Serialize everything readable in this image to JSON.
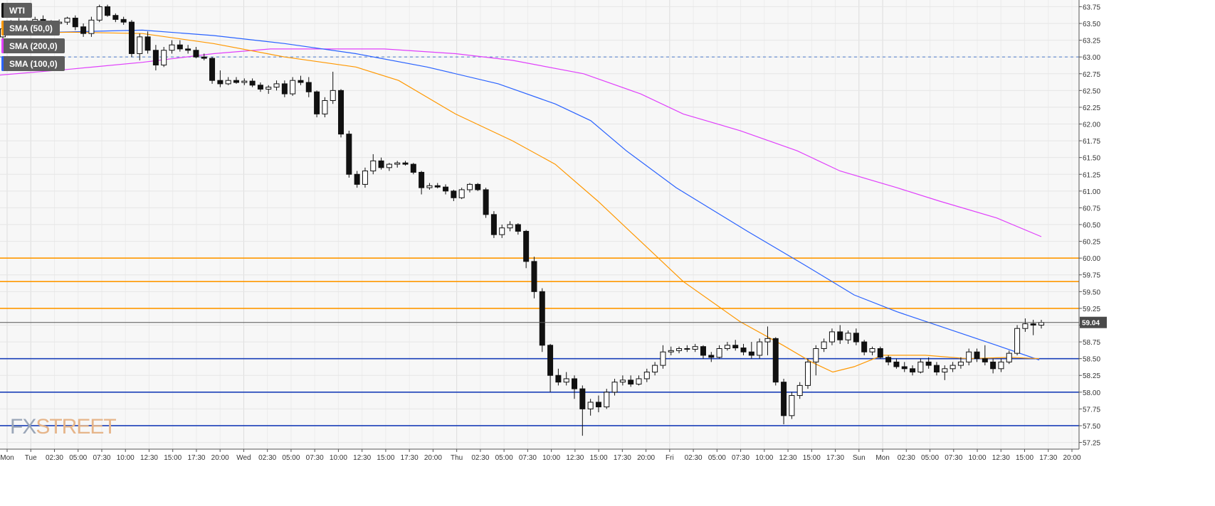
{
  "legend": [
    {
      "label": "WTI",
      "color": "#111111"
    },
    {
      "label": "SMA (50,0)",
      "color": "#ff9800"
    },
    {
      "label": "SMA (200,0)",
      "color": "#e040fb"
    },
    {
      "label": "SMA (100,0)",
      "color": "#2962ff"
    }
  ],
  "watermark": {
    "fx": "FX",
    "rest": "STREET"
  },
  "chart_data": {
    "type": "candlestick",
    "symbol": "WTI",
    "ylim": [
      57.15,
      63.85
    ],
    "y_ticks": [
      "57.25",
      "57.50",
      "57.75",
      "58.00",
      "58.25",
      "58.50",
      "58.75",
      "59.00",
      "59.25",
      "59.50",
      "59.75",
      "60.00",
      "60.25",
      "60.50",
      "60.75",
      "61.00",
      "61.25",
      "61.50",
      "61.75",
      "62.00",
      "62.25",
      "62.50",
      "62.75",
      "63.00",
      "63.25",
      "63.50",
      "63.75"
    ],
    "x_labels": [
      "Mon",
      "Tue",
      "02:30",
      "05:00",
      "07:30",
      "10:00",
      "12:30",
      "15:00",
      "17:30",
      "20:00",
      "Wed",
      "02:30",
      "05:00",
      "07:30",
      "10:00",
      "12:30",
      "15:00",
      "17:30",
      "20:00",
      "Thu",
      "02:30",
      "05:00",
      "07:30",
      "10:00",
      "12:30",
      "15:00",
      "17:30",
      "20:00",
      "Fri",
      "02:30",
      "05:00",
      "07:30",
      "10:00",
      "12:30",
      "15:00",
      "17:30",
      "Sun",
      "Mon",
      "02:30",
      "05:00",
      "07:30",
      "10:00",
      "12:30",
      "15:00",
      "17:30",
      "20:00"
    ],
    "current_price": "59.04",
    "horizontal_levels": [
      {
        "value": 60.0,
        "color": "#ff9800"
      },
      {
        "value": 59.65,
        "color": "#ff9800"
      },
      {
        "value": 59.25,
        "color": "#ff9800"
      },
      {
        "value": 58.5,
        "color": "#1a3fb8"
      },
      {
        "value": 58.0,
        "color": "#1a3fb8"
      },
      {
        "value": 57.5,
        "color": "#1a3fb8"
      },
      {
        "value": 63.0,
        "color": "#4a78c8",
        "dashed": true
      }
    ],
    "candles": [
      {
        "o": 63.3,
        "h": 63.45,
        "l": 63.25,
        "c": 63.42
      },
      {
        "o": 63.42,
        "h": 63.55,
        "l": 63.4,
        "c": 63.5
      },
      {
        "o": 63.5,
        "h": 63.58,
        "l": 63.38,
        "c": 63.45
      },
      {
        "o": 63.45,
        "h": 63.55,
        "l": 63.42,
        "c": 63.52
      },
      {
        "o": 63.52,
        "h": 63.6,
        "l": 63.48,
        "c": 63.56
      },
      {
        "o": 63.56,
        "h": 63.62,
        "l": 63.45,
        "c": 63.48
      },
      {
        "o": 63.48,
        "h": 63.55,
        "l": 63.44,
        "c": 63.5
      },
      {
        "o": 63.5,
        "h": 63.56,
        "l": 63.46,
        "c": 63.52
      },
      {
        "o": 63.52,
        "h": 63.6,
        "l": 63.48,
        "c": 63.58
      },
      {
        "o": 63.58,
        "h": 63.62,
        "l": 63.4,
        "c": 63.45
      },
      {
        "o": 63.45,
        "h": 63.5,
        "l": 63.3,
        "c": 63.35
      },
      {
        "o": 63.35,
        "h": 63.6,
        "l": 63.3,
        "c": 63.55
      },
      {
        "o": 63.55,
        "h": 63.78,
        "l": 63.52,
        "c": 63.75
      },
      {
        "o": 63.75,
        "h": 63.78,
        "l": 63.6,
        "c": 63.62
      },
      {
        "o": 63.62,
        "h": 63.65,
        "l": 63.52,
        "c": 63.56
      },
      {
        "o": 63.56,
        "h": 63.6,
        "l": 63.48,
        "c": 63.52
      },
      {
        "o": 63.52,
        "h": 63.55,
        "l": 63.0,
        "c": 63.05
      },
      {
        "o": 63.05,
        "h": 63.35,
        "l": 62.95,
        "c": 63.3
      },
      {
        "o": 63.3,
        "h": 63.38,
        "l": 63.05,
        "c": 63.1
      },
      {
        "o": 63.1,
        "h": 63.18,
        "l": 62.8,
        "c": 62.88
      },
      {
        "o": 62.88,
        "h": 63.15,
        "l": 62.85,
        "c": 63.1
      },
      {
        "o": 63.1,
        "h": 63.25,
        "l": 63.05,
        "c": 63.18
      },
      {
        "o": 63.18,
        "h": 63.25,
        "l": 63.08,
        "c": 63.12
      },
      {
        "o": 63.12,
        "h": 63.18,
        "l": 63.05,
        "c": 63.1
      },
      {
        "o": 63.1,
        "h": 63.15,
        "l": 62.98,
        "c": 63.0
      },
      {
        "o": 63.0,
        "h": 63.05,
        "l": 62.95,
        "c": 62.98
      },
      {
        "o": 62.98,
        "h": 63.0,
        "l": 62.6,
        "c": 62.65
      },
      {
        "o": 62.65,
        "h": 62.8,
        "l": 62.55,
        "c": 62.6
      },
      {
        "o": 62.6,
        "h": 62.7,
        "l": 62.58,
        "c": 62.65
      },
      {
        "o": 62.65,
        "h": 62.7,
        "l": 62.6,
        "c": 62.62
      },
      {
        "o": 62.62,
        "h": 62.68,
        "l": 62.58,
        "c": 62.64
      },
      {
        "o": 62.64,
        "h": 62.68,
        "l": 62.55,
        "c": 62.58
      },
      {
        "o": 62.58,
        "h": 62.62,
        "l": 62.48,
        "c": 62.52
      },
      {
        "o": 62.52,
        "h": 62.58,
        "l": 62.45,
        "c": 62.55
      },
      {
        "o": 62.55,
        "h": 62.65,
        "l": 62.5,
        "c": 62.6
      },
      {
        "o": 62.6,
        "h": 62.65,
        "l": 62.4,
        "c": 62.45
      },
      {
        "o": 62.45,
        "h": 62.7,
        "l": 62.42,
        "c": 62.65
      },
      {
        "o": 62.65,
        "h": 62.72,
        "l": 62.58,
        "c": 62.62
      },
      {
        "o": 62.62,
        "h": 62.7,
        "l": 62.4,
        "c": 62.48
      },
      {
        "o": 62.48,
        "h": 62.5,
        "l": 62.1,
        "c": 62.15
      },
      {
        "o": 62.15,
        "h": 62.4,
        "l": 62.1,
        "c": 62.35
      },
      {
        "o": 62.35,
        "h": 62.78,
        "l": 62.3,
        "c": 62.5
      },
      {
        "o": 62.5,
        "h": 62.52,
        "l": 61.8,
        "c": 61.85
      },
      {
        "o": 61.85,
        "h": 61.9,
        "l": 61.2,
        "c": 61.25
      },
      {
        "o": 61.25,
        "h": 61.3,
        "l": 61.05,
        "c": 61.1
      },
      {
        "o": 61.1,
        "h": 61.35,
        "l": 61.05,
        "c": 61.3
      },
      {
        "o": 61.3,
        "h": 61.55,
        "l": 61.25,
        "c": 61.45
      },
      {
        "o": 61.45,
        "h": 61.5,
        "l": 61.32,
        "c": 61.35
      },
      {
        "o": 61.35,
        "h": 61.42,
        "l": 61.3,
        "c": 61.4
      },
      {
        "o": 61.4,
        "h": 61.45,
        "l": 61.35,
        "c": 61.42
      },
      {
        "o": 61.42,
        "h": 61.45,
        "l": 61.38,
        "c": 61.4
      },
      {
        "o": 61.4,
        "h": 61.42,
        "l": 61.25,
        "c": 61.28
      },
      {
        "o": 61.28,
        "h": 61.3,
        "l": 60.95,
        "c": 61.05
      },
      {
        "o": 61.05,
        "h": 61.12,
        "l": 61.02,
        "c": 61.08
      },
      {
        "o": 61.08,
        "h": 61.12,
        "l": 61.04,
        "c": 61.06
      },
      {
        "o": 61.06,
        "h": 61.1,
        "l": 60.95,
        "c": 61.0
      },
      {
        "o": 61.0,
        "h": 61.02,
        "l": 60.85,
        "c": 60.9
      },
      {
        "o": 60.9,
        "h": 61.05,
        "l": 60.88,
        "c": 61.02
      },
      {
        "o": 61.02,
        "h": 61.12,
        "l": 60.98,
        "c": 61.1
      },
      {
        "o": 61.1,
        "h": 61.12,
        "l": 61.0,
        "c": 61.02
      },
      {
        "o": 61.02,
        "h": 61.05,
        "l": 60.6,
        "c": 60.65
      },
      {
        "o": 60.65,
        "h": 60.7,
        "l": 60.3,
        "c": 60.35
      },
      {
        "o": 60.35,
        "h": 60.5,
        "l": 60.3,
        "c": 60.45
      },
      {
        "o": 60.45,
        "h": 60.55,
        "l": 60.4,
        "c": 60.5
      },
      {
        "o": 60.5,
        "h": 60.52,
        "l": 60.35,
        "c": 60.4
      },
      {
        "o": 60.4,
        "h": 60.42,
        "l": 59.85,
        "c": 59.95
      },
      {
        "o": 59.95,
        "h": 60.02,
        "l": 59.4,
        "c": 59.5
      },
      {
        "o": 59.5,
        "h": 59.55,
        "l": 58.6,
        "c": 58.7
      },
      {
        "o": 58.7,
        "h": 58.72,
        "l": 58.0,
        "c": 58.25
      },
      {
        "o": 58.25,
        "h": 58.35,
        "l": 58.1,
        "c": 58.15
      },
      {
        "o": 58.15,
        "h": 58.3,
        "l": 58.1,
        "c": 58.2
      },
      {
        "o": 58.2,
        "h": 58.25,
        "l": 57.9,
        "c": 58.05
      },
      {
        "o": 58.05,
        "h": 58.1,
        "l": 57.35,
        "c": 57.75
      },
      {
        "o": 57.75,
        "h": 57.9,
        "l": 57.65,
        "c": 57.85
      },
      {
        "o": 57.85,
        "h": 57.95,
        "l": 57.7,
        "c": 57.78
      },
      {
        "o": 57.78,
        "h": 58.05,
        "l": 57.75,
        "c": 58.0
      },
      {
        "o": 58.0,
        "h": 58.2,
        "l": 57.95,
        "c": 58.15
      },
      {
        "o": 58.15,
        "h": 58.25,
        "l": 58.1,
        "c": 58.18
      },
      {
        "o": 58.18,
        "h": 58.25,
        "l": 58.08,
        "c": 58.12
      },
      {
        "o": 58.12,
        "h": 58.25,
        "l": 58.1,
        "c": 58.2
      },
      {
        "o": 58.2,
        "h": 58.35,
        "l": 58.15,
        "c": 58.3
      },
      {
        "o": 58.3,
        "h": 58.45,
        "l": 58.25,
        "c": 58.4
      },
      {
        "o": 58.4,
        "h": 58.7,
        "l": 58.35,
        "c": 58.6
      },
      {
        "o": 58.6,
        "h": 58.68,
        "l": 58.55,
        "c": 58.62
      },
      {
        "o": 58.62,
        "h": 58.68,
        "l": 58.58,
        "c": 58.65
      },
      {
        "o": 58.65,
        "h": 58.7,
        "l": 58.6,
        "c": 58.64
      },
      {
        "o": 58.64,
        "h": 58.72,
        "l": 58.6,
        "c": 58.68
      },
      {
        "o": 58.68,
        "h": 58.7,
        "l": 58.5,
        "c": 58.55
      },
      {
        "o": 58.55,
        "h": 58.6,
        "l": 58.45,
        "c": 58.52
      },
      {
        "o": 58.52,
        "h": 58.7,
        "l": 58.5,
        "c": 58.65
      },
      {
        "o": 58.65,
        "h": 58.75,
        "l": 58.62,
        "c": 58.7
      },
      {
        "o": 58.7,
        "h": 58.78,
        "l": 58.62,
        "c": 58.66
      },
      {
        "o": 58.66,
        "h": 58.72,
        "l": 58.55,
        "c": 58.6
      },
      {
        "o": 58.6,
        "h": 58.75,
        "l": 58.5,
        "c": 58.55
      },
      {
        "o": 58.55,
        "h": 58.8,
        "l": 58.5,
        "c": 58.75
      },
      {
        "o": 58.75,
        "h": 58.98,
        "l": 58.55,
        "c": 58.8
      },
      {
        "o": 58.8,
        "h": 58.82,
        "l": 58.1,
        "c": 58.15
      },
      {
        "o": 58.15,
        "h": 58.2,
        "l": 57.52,
        "c": 57.65
      },
      {
        "o": 57.65,
        "h": 58.0,
        "l": 57.6,
        "c": 57.95
      },
      {
        "o": 57.95,
        "h": 58.15,
        "l": 57.9,
        "c": 58.1
      },
      {
        "o": 58.1,
        "h": 58.5,
        "l": 58.05,
        "c": 58.45
      },
      {
        "o": 58.45,
        "h": 58.7,
        "l": 58.25,
        "c": 58.65
      },
      {
        "o": 58.65,
        "h": 58.8,
        "l": 58.6,
        "c": 58.75
      },
      {
        "o": 58.75,
        "h": 58.95,
        "l": 58.7,
        "c": 58.9
      },
      {
        "o": 58.9,
        "h": 59.0,
        "l": 58.72,
        "c": 58.78
      },
      {
        "o": 58.78,
        "h": 58.92,
        "l": 58.72,
        "c": 58.88
      },
      {
        "o": 58.88,
        "h": 58.95,
        "l": 58.7,
        "c": 58.75
      },
      {
        "o": 58.75,
        "h": 58.78,
        "l": 58.55,
        "c": 58.6
      },
      {
        "o": 58.6,
        "h": 58.68,
        "l": 58.55,
        "c": 58.65
      },
      {
        "o": 58.65,
        "h": 58.68,
        "l": 58.5,
        "c": 58.52
      },
      {
        "o": 58.52,
        "h": 58.55,
        "l": 58.4,
        "c": 58.45
      },
      {
        "o": 58.45,
        "h": 58.5,
        "l": 58.35,
        "c": 58.38
      },
      {
        "o": 58.38,
        "h": 58.45,
        "l": 58.3,
        "c": 58.35
      },
      {
        "o": 58.35,
        "h": 58.4,
        "l": 58.25,
        "c": 58.3
      },
      {
        "o": 58.3,
        "h": 58.5,
        "l": 58.28,
        "c": 58.45
      },
      {
        "o": 58.45,
        "h": 58.52,
        "l": 58.35,
        "c": 58.4
      },
      {
        "o": 58.4,
        "h": 58.45,
        "l": 58.25,
        "c": 58.3
      },
      {
        "o": 58.3,
        "h": 58.4,
        "l": 58.18,
        "c": 58.35
      },
      {
        "o": 58.35,
        "h": 58.45,
        "l": 58.3,
        "c": 58.4
      },
      {
        "o": 58.4,
        "h": 58.52,
        "l": 58.35,
        "c": 58.45
      },
      {
        "o": 58.45,
        "h": 58.65,
        "l": 58.4,
        "c": 58.6
      },
      {
        "o": 58.6,
        "h": 58.65,
        "l": 58.45,
        "c": 58.5
      },
      {
        "o": 58.5,
        "h": 58.7,
        "l": 58.4,
        "c": 58.45
      },
      {
        "o": 58.45,
        "h": 58.5,
        "l": 58.28,
        "c": 58.35
      },
      {
        "o": 58.35,
        "h": 58.5,
        "l": 58.3,
        "c": 58.45
      },
      {
        "o": 58.45,
        "h": 58.62,
        "l": 58.42,
        "c": 58.58
      },
      {
        "o": 58.58,
        "h": 59.0,
        "l": 58.55,
        "c": 58.95
      },
      {
        "o": 58.95,
        "h": 59.1,
        "l": 58.9,
        "c": 59.02
      },
      {
        "o": 59.02,
        "h": 59.08,
        "l": 58.85,
        "c": 59.0
      },
      {
        "o": 59.0,
        "h": 59.08,
        "l": 58.95,
        "c": 59.04
      }
    ],
    "sma_50": [
      [
        0,
        63.35
      ],
      [
        100,
        63.37
      ],
      [
        200,
        63.35
      ],
      [
        300,
        63.2
      ],
      [
        400,
        63.0
      ],
      [
        500,
        62.85
      ],
      [
        560,
        62.65
      ],
      [
        640,
        62.15
      ],
      [
        720,
        61.75
      ],
      [
        780,
        61.4
      ],
      [
        840,
        60.85
      ],
      [
        900,
        60.25
      ],
      [
        960,
        59.65
      ],
      [
        1040,
        59.05
      ],
      [
        1100,
        58.7
      ],
      [
        1140,
        58.45
      ],
      [
        1170,
        58.3
      ],
      [
        1200,
        58.38
      ],
      [
        1240,
        58.55
      ],
      [
        1300,
        58.55
      ],
      [
        1360,
        58.5
      ],
      [
        1420,
        58.52
      ],
      [
        1460,
        58.5
      ]
    ],
    "sma_100": [
      [
        0,
        63.35
      ],
      [
        200,
        63.4
      ],
      [
        300,
        63.32
      ],
      [
        400,
        63.2
      ],
      [
        500,
        63.05
      ],
      [
        600,
        62.85
      ],
      [
        700,
        62.6
      ],
      [
        780,
        62.3
      ],
      [
        830,
        62.05
      ],
      [
        880,
        61.6
      ],
      [
        950,
        61.05
      ],
      [
        1050,
        60.4
      ],
      [
        1130,
        59.9
      ],
      [
        1200,
        59.45
      ],
      [
        1260,
        59.2
      ],
      [
        1330,
        58.95
      ],
      [
        1400,
        58.7
      ],
      [
        1460,
        58.48
      ]
    ],
    "sma_200": [
      [
        0,
        62.73
      ],
      [
        100,
        62.82
      ],
      [
        200,
        62.92
      ],
      [
        300,
        63.05
      ],
      [
        380,
        63.12
      ],
      [
        540,
        63.12
      ],
      [
        640,
        63.05
      ],
      [
        720,
        62.95
      ],
      [
        820,
        62.75
      ],
      [
        900,
        62.45
      ],
      [
        960,
        62.15
      ],
      [
        1040,
        61.9
      ],
      [
        1120,
        61.6
      ],
      [
        1180,
        61.3
      ],
      [
        1260,
        61.05
      ],
      [
        1320,
        60.85
      ],
      [
        1400,
        60.6
      ],
      [
        1463,
        60.32
      ]
    ]
  }
}
